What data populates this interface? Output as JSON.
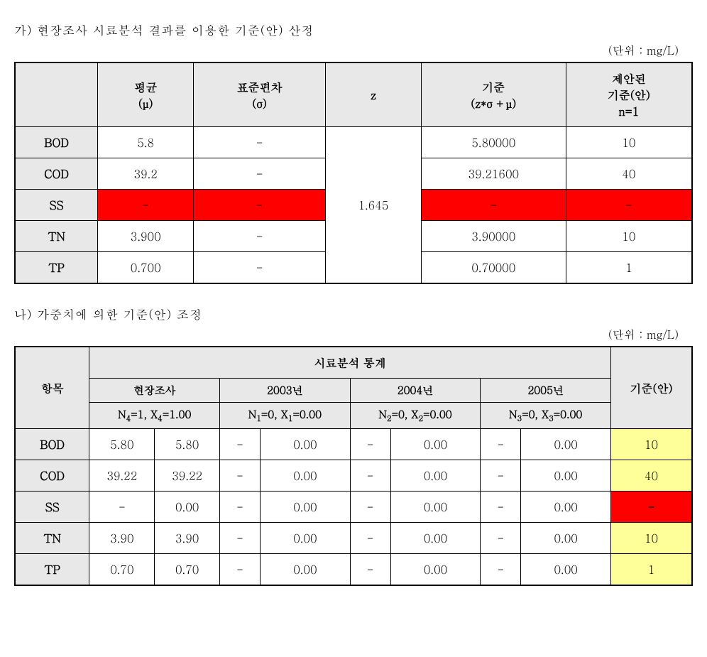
{
  "section_a": {
    "title": "가) 현장조사 시료분석 결과를 이용한 기준(안) 산정",
    "unit": "(단위 : mg/L)",
    "headers": {
      "blank": "",
      "mean": "평균\n(μ)",
      "stddev": "표준편차\n(σ)",
      "z": "z",
      "criterion": "기준\n(z*σ +μ)",
      "proposed": "제안된\n기준(안)\nn=1"
    },
    "z_value": "1.645",
    "rows": [
      {
        "label": "BOD",
        "mean": "5.8",
        "stddev": "-",
        "criterion": "5.80000",
        "proposed": "10",
        "red": false
      },
      {
        "label": "COD",
        "mean": "39.2",
        "stddev": "-",
        "criterion": "39.21600",
        "proposed": "40",
        "red": false
      },
      {
        "label": "SS",
        "mean": "-",
        "stddev": "-",
        "criterion": "-",
        "proposed": "-",
        "red": true
      },
      {
        "label": "TN",
        "mean": "3.900",
        "stddev": "-",
        "criterion": "3.90000",
        "proposed": "10",
        "red": false
      },
      {
        "label": "TP",
        "mean": "0.700",
        "stddev": "-",
        "criterion": "0.70000",
        "proposed": "1",
        "red": false
      }
    ],
    "col_widths": [
      "16%",
      "16%",
      "17%",
      "17%",
      "17%",
      "17%"
    ]
  },
  "section_b": {
    "title": "나) 가중치에 의한 기준(안) 조정",
    "unit": "(단위 : mg/L)",
    "headers": {
      "item": "항목",
      "stats": "시료분석 통계",
      "field": "현장조사",
      "field_sub": "N₄=1, X₄=1.00",
      "y2003": "2003년",
      "y2003_sub": "N₁=0, X₁=0.00",
      "y2004": "2004년",
      "y2004_sub": "N₂=0, X₂=0.00",
      "y2005": "2005년",
      "y2005_sub": "N₃=0, X₃=0.00",
      "criterion": "기준(안)"
    },
    "rows": [
      {
        "label": "BOD",
        "fa": "5.80",
        "fb": "5.80",
        "y03a": "-",
        "y03b": "0.00",
        "y04a": "-",
        "y04b": "0.00",
        "y05a": "-",
        "y05b": "0.00",
        "crit": "10",
        "crit_red": false
      },
      {
        "label": "COD",
        "fa": "39.22",
        "fb": "39.22",
        "y03a": "-",
        "y03b": "0.00",
        "y04a": "-",
        "y04b": "0.00",
        "y05a": "-",
        "y05b": "0.00",
        "crit": "40",
        "crit_red": false
      },
      {
        "label": "SS",
        "fa": "-",
        "fb": "0.00",
        "y03a": "-",
        "y03b": "0.00",
        "y04a": "-",
        "y04b": "0.00",
        "y05a": "-",
        "y05b": "0.00",
        "crit": "-",
        "crit_red": true
      },
      {
        "label": "TN",
        "fa": "3.90",
        "fb": "3.90",
        "y03a": "-",
        "y03b": "0.00",
        "y04a": "-",
        "y04b": "0.00",
        "y05a": "-",
        "y05b": "0.00",
        "crit": "10",
        "crit_red": false
      },
      {
        "label": "TP",
        "fa": "0.70",
        "fb": "0.70",
        "y03a": "-",
        "y03b": "0.00",
        "y04a": "-",
        "y04b": "0.00",
        "y05a": "-",
        "y05b": "0.00",
        "crit": "1",
        "crit_red": false
      }
    ]
  },
  "colors": {
    "red": "#ff0000",
    "yellow": "#ffff99",
    "header_bg": "#e8e8e8",
    "border": "#000000"
  }
}
